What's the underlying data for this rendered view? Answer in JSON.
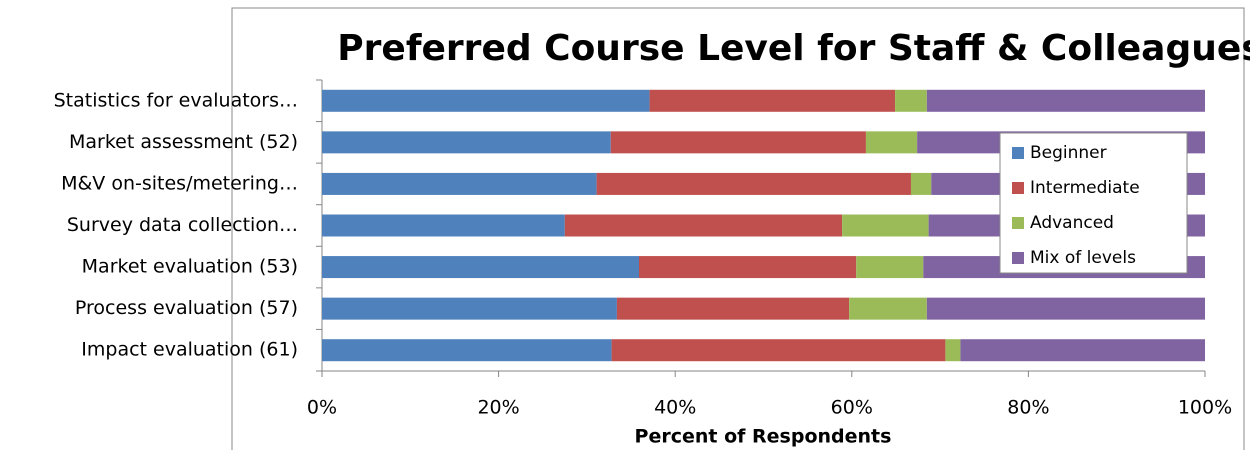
{
  "chart_data": {
    "type": "stacked_barh",
    "title": "Preferred Course Level for Staff & Colleagues",
    "x_label": "Percent of Respondents",
    "categories": [
      "Statistics for evaluators…",
      "Market assessment (52)",
      "M&V on-sites/metering…",
      "Survey data collection…",
      "Market evaluation (53)",
      "Process evaluation (57)",
      "Impact evaluation (61)"
    ],
    "series": [
      {
        "name": "Beginner",
        "color": "#4f81bd",
        "values": [
          37.1,
          32.7,
          31.1,
          27.5,
          35.9,
          33.4,
          32.8
        ]
      },
      {
        "name": "Intermediate",
        "color": "#c0504d",
        "values": [
          27.8,
          28.9,
          35.6,
          31.4,
          24.6,
          26.3,
          37.8
        ]
      },
      {
        "name": "Advanced",
        "color": "#9bbb59",
        "values": [
          3.6,
          5.8,
          2.3,
          9.8,
          7.6,
          8.8,
          1.7
        ]
      },
      {
        "name": "Mix of levels",
        "color": "#8064a2",
        "values": [
          31.5,
          32.6,
          31.0,
          31.3,
          31.9,
          31.5,
          27.7
        ]
      }
    ],
    "xlim": [
      0,
      100
    ],
    "xticks": [
      {
        "value": 0,
        "label": "0%"
      },
      {
        "value": 20,
        "label": "20%"
      },
      {
        "value": 40,
        "label": "40%"
      },
      {
        "value": 60,
        "label": "60%"
      },
      {
        "value": 80,
        "label": "80%"
      },
      {
        "value": 100,
        "label": "100%"
      }
    ],
    "legend": "right"
  }
}
